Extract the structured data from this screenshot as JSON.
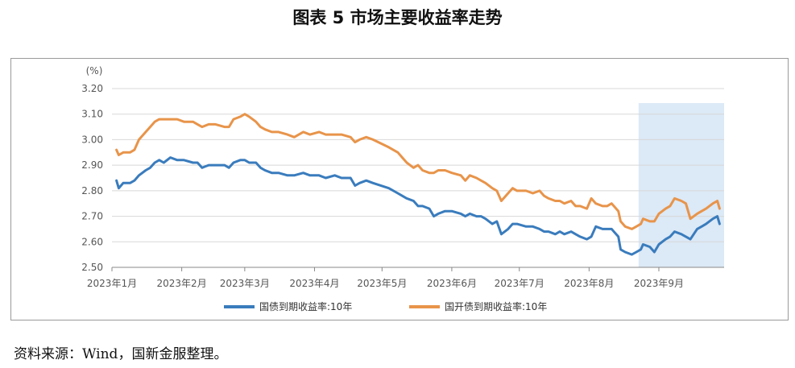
{
  "figure": {
    "title": "图表 5 市场主要收益率走势",
    "source": "资料来源：Wind，国新金服整理。"
  },
  "colors": {
    "guozhai": "#3a7cbd",
    "guokai": "#e8944a",
    "highlight": "#dce9f6",
    "grid": "#d8d8d8",
    "axis": "#888888"
  },
  "chart_data": {
    "type": "line",
    "unit_label": "(%)",
    "ylim": [
      2.5,
      3.2
    ],
    "yticks": [
      "3.20",
      "3.10",
      "3.00",
      "2.90",
      "2.80",
      "2.70",
      "2.60",
      "2.50"
    ],
    "x_start": "2023-01-01",
    "x_end": "2023-09-30",
    "xtick_labels": [
      "2023年1月",
      "2023年2月",
      "2023年3月",
      "2023年4月",
      "2023年5月",
      "2023年6月",
      "2023年7月",
      "2023年8月",
      "2023年9月"
    ],
    "xtick_dates": [
      "2023-01-01",
      "2023-02-01",
      "2023-03-01",
      "2023-04-01",
      "2023-05-01",
      "2023-06-01",
      "2023-07-01",
      "2023-08-01",
      "2023-09-01"
    ],
    "highlight_range": [
      "2023-08-23",
      "2023-09-30"
    ],
    "grid": "horizontal",
    "legend_position": "bottom",
    "series": [
      {
        "name": "国债到期收益率:10年",
        "points": [
          [
            "2023-01-03",
            2.84
          ],
          [
            "2023-01-04",
            2.81
          ],
          [
            "2023-01-06",
            2.83
          ],
          [
            "2023-01-09",
            2.83
          ],
          [
            "2023-01-11",
            2.84
          ],
          [
            "2023-01-13",
            2.86
          ],
          [
            "2023-01-16",
            2.88
          ],
          [
            "2023-01-18",
            2.89
          ],
          [
            "2023-01-20",
            2.91
          ],
          [
            "2023-01-22",
            2.92
          ],
          [
            "2023-01-24",
            2.91
          ],
          [
            "2023-01-27",
            2.93
          ],
          [
            "2023-01-30",
            2.92
          ],
          [
            "2023-02-02",
            2.92
          ],
          [
            "2023-02-06",
            2.91
          ],
          [
            "2023-02-08",
            2.91
          ],
          [
            "2023-02-10",
            2.89
          ],
          [
            "2023-02-13",
            2.9
          ],
          [
            "2023-02-16",
            2.9
          ],
          [
            "2023-02-20",
            2.9
          ],
          [
            "2023-02-22",
            2.89
          ],
          [
            "2023-02-24",
            2.91
          ],
          [
            "2023-02-27",
            2.92
          ],
          [
            "2023-03-01",
            2.92
          ],
          [
            "2023-03-03",
            2.91
          ],
          [
            "2023-03-06",
            2.91
          ],
          [
            "2023-03-08",
            2.89
          ],
          [
            "2023-03-10",
            2.88
          ],
          [
            "2023-03-13",
            2.87
          ],
          [
            "2023-03-16",
            2.87
          ],
          [
            "2023-03-20",
            2.86
          ],
          [
            "2023-03-23",
            2.86
          ],
          [
            "2023-03-27",
            2.87
          ],
          [
            "2023-03-30",
            2.86
          ],
          [
            "2023-04-03",
            2.86
          ],
          [
            "2023-04-06",
            2.85
          ],
          [
            "2023-04-10",
            2.86
          ],
          [
            "2023-04-13",
            2.85
          ],
          [
            "2023-04-17",
            2.85
          ],
          [
            "2023-04-19",
            2.82
          ],
          [
            "2023-04-21",
            2.83
          ],
          [
            "2023-04-24",
            2.84
          ],
          [
            "2023-04-27",
            2.83
          ],
          [
            "2023-05-04",
            2.81
          ],
          [
            "2023-05-08",
            2.79
          ],
          [
            "2023-05-10",
            2.78
          ],
          [
            "2023-05-12",
            2.77
          ],
          [
            "2023-05-15",
            2.76
          ],
          [
            "2023-05-17",
            2.74
          ],
          [
            "2023-05-19",
            2.74
          ],
          [
            "2023-05-22",
            2.73
          ],
          [
            "2023-05-24",
            2.7
          ],
          [
            "2023-05-26",
            2.71
          ],
          [
            "2023-05-29",
            2.72
          ],
          [
            "2023-06-01",
            2.72
          ],
          [
            "2023-06-05",
            2.71
          ],
          [
            "2023-06-07",
            2.7
          ],
          [
            "2023-06-09",
            2.71
          ],
          [
            "2023-06-12",
            2.7
          ],
          [
            "2023-06-14",
            2.7
          ],
          [
            "2023-06-16",
            2.69
          ],
          [
            "2023-06-19",
            2.67
          ],
          [
            "2023-06-21",
            2.68
          ],
          [
            "2023-06-23",
            2.63
          ],
          [
            "2023-06-26",
            2.65
          ],
          [
            "2023-06-28",
            2.67
          ],
          [
            "2023-06-30",
            2.67
          ],
          [
            "2023-07-04",
            2.66
          ],
          [
            "2023-07-07",
            2.66
          ],
          [
            "2023-07-10",
            2.65
          ],
          [
            "2023-07-12",
            2.64
          ],
          [
            "2023-07-14",
            2.64
          ],
          [
            "2023-07-17",
            2.63
          ],
          [
            "2023-07-19",
            2.64
          ],
          [
            "2023-07-21",
            2.63
          ],
          [
            "2023-07-24",
            2.64
          ],
          [
            "2023-07-26",
            2.63
          ],
          [
            "2023-07-28",
            2.62
          ],
          [
            "2023-07-31",
            2.61
          ],
          [
            "2023-08-02",
            2.62
          ],
          [
            "2023-08-04",
            2.66
          ],
          [
            "2023-08-07",
            2.65
          ],
          [
            "2023-08-09",
            2.65
          ],
          [
            "2023-08-11",
            2.65
          ],
          [
            "2023-08-14",
            2.62
          ],
          [
            "2023-08-15",
            2.57
          ],
          [
            "2023-08-17",
            2.56
          ],
          [
            "2023-08-20",
            2.55
          ],
          [
            "2023-08-22",
            2.56
          ],
          [
            "2023-08-24",
            2.57
          ],
          [
            "2023-08-25",
            2.59
          ],
          [
            "2023-08-28",
            2.58
          ],
          [
            "2023-08-30",
            2.56
          ],
          [
            "2023-09-01",
            2.59
          ],
          [
            "2023-09-04",
            2.61
          ],
          [
            "2023-09-06",
            2.62
          ],
          [
            "2023-09-08",
            2.64
          ],
          [
            "2023-09-11",
            2.63
          ],
          [
            "2023-09-13",
            2.62
          ],
          [
            "2023-09-15",
            2.61
          ],
          [
            "2023-09-18",
            2.65
          ],
          [
            "2023-09-20",
            2.66
          ],
          [
            "2023-09-22",
            2.67
          ],
          [
            "2023-09-25",
            2.69
          ],
          [
            "2023-09-27",
            2.7
          ],
          [
            "2023-09-28",
            2.67
          ]
        ]
      },
      {
        "name": "国开债到期收益率:10年",
        "points": [
          [
            "2023-01-03",
            2.96
          ],
          [
            "2023-01-04",
            2.94
          ],
          [
            "2023-01-06",
            2.95
          ],
          [
            "2023-01-09",
            2.95
          ],
          [
            "2023-01-11",
            2.96
          ],
          [
            "2023-01-13",
            3.0
          ],
          [
            "2023-01-16",
            3.03
          ],
          [
            "2023-01-18",
            3.05
          ],
          [
            "2023-01-20",
            3.07
          ],
          [
            "2023-01-22",
            3.08
          ],
          [
            "2023-01-24",
            3.08
          ],
          [
            "2023-01-27",
            3.08
          ],
          [
            "2023-01-30",
            3.08
          ],
          [
            "2023-02-02",
            3.07
          ],
          [
            "2023-02-06",
            3.07
          ],
          [
            "2023-02-08",
            3.06
          ],
          [
            "2023-02-10",
            3.05
          ],
          [
            "2023-02-13",
            3.06
          ],
          [
            "2023-02-16",
            3.06
          ],
          [
            "2023-02-20",
            3.05
          ],
          [
            "2023-02-22",
            3.05
          ],
          [
            "2023-02-24",
            3.08
          ],
          [
            "2023-02-27",
            3.09
          ],
          [
            "2023-03-01",
            3.1
          ],
          [
            "2023-03-03",
            3.09
          ],
          [
            "2023-03-06",
            3.07
          ],
          [
            "2023-03-08",
            3.05
          ],
          [
            "2023-03-10",
            3.04
          ],
          [
            "2023-03-13",
            3.03
          ],
          [
            "2023-03-16",
            3.03
          ],
          [
            "2023-03-20",
            3.02
          ],
          [
            "2023-03-23",
            3.01
          ],
          [
            "2023-03-27",
            3.03
          ],
          [
            "2023-03-30",
            3.02
          ],
          [
            "2023-04-03",
            3.03
          ],
          [
            "2023-04-06",
            3.02
          ],
          [
            "2023-04-10",
            3.02
          ],
          [
            "2023-04-13",
            3.02
          ],
          [
            "2023-04-17",
            3.01
          ],
          [
            "2023-04-19",
            2.99
          ],
          [
            "2023-04-21",
            3.0
          ],
          [
            "2023-04-24",
            3.01
          ],
          [
            "2023-04-27",
            3.0
          ],
          [
            "2023-05-04",
            2.97
          ],
          [
            "2023-05-08",
            2.95
          ],
          [
            "2023-05-10",
            2.93
          ],
          [
            "2023-05-12",
            2.91
          ],
          [
            "2023-05-15",
            2.89
          ],
          [
            "2023-05-17",
            2.9
          ],
          [
            "2023-05-19",
            2.88
          ],
          [
            "2023-05-22",
            2.87
          ],
          [
            "2023-05-24",
            2.87
          ],
          [
            "2023-05-26",
            2.88
          ],
          [
            "2023-05-29",
            2.88
          ],
          [
            "2023-06-01",
            2.87
          ],
          [
            "2023-06-05",
            2.86
          ],
          [
            "2023-06-07",
            2.84
          ],
          [
            "2023-06-09",
            2.86
          ],
          [
            "2023-06-12",
            2.85
          ],
          [
            "2023-06-14",
            2.84
          ],
          [
            "2023-06-16",
            2.83
          ],
          [
            "2023-06-19",
            2.81
          ],
          [
            "2023-06-21",
            2.8
          ],
          [
            "2023-06-23",
            2.76
          ],
          [
            "2023-06-26",
            2.79
          ],
          [
            "2023-06-28",
            2.81
          ],
          [
            "2023-06-30",
            2.8
          ],
          [
            "2023-07-04",
            2.8
          ],
          [
            "2023-07-07",
            2.79
          ],
          [
            "2023-07-10",
            2.8
          ],
          [
            "2023-07-12",
            2.78
          ],
          [
            "2023-07-14",
            2.77
          ],
          [
            "2023-07-17",
            2.76
          ],
          [
            "2023-07-19",
            2.76
          ],
          [
            "2023-07-21",
            2.75
          ],
          [
            "2023-07-24",
            2.76
          ],
          [
            "2023-07-26",
            2.74
          ],
          [
            "2023-07-28",
            2.74
          ],
          [
            "2023-07-31",
            2.73
          ],
          [
            "2023-08-02",
            2.77
          ],
          [
            "2023-08-04",
            2.75
          ],
          [
            "2023-08-07",
            2.74
          ],
          [
            "2023-08-09",
            2.74
          ],
          [
            "2023-08-11",
            2.75
          ],
          [
            "2023-08-14",
            2.72
          ],
          [
            "2023-08-15",
            2.68
          ],
          [
            "2023-08-17",
            2.66
          ],
          [
            "2023-08-20",
            2.65
          ],
          [
            "2023-08-22",
            2.66
          ],
          [
            "2023-08-24",
            2.67
          ],
          [
            "2023-08-25",
            2.69
          ],
          [
            "2023-08-28",
            2.68
          ],
          [
            "2023-08-30",
            2.68
          ],
          [
            "2023-09-01",
            2.71
          ],
          [
            "2023-09-04",
            2.73
          ],
          [
            "2023-09-06",
            2.74
          ],
          [
            "2023-09-08",
            2.77
          ],
          [
            "2023-09-11",
            2.76
          ],
          [
            "2023-09-13",
            2.75
          ],
          [
            "2023-09-15",
            2.69
          ],
          [
            "2023-09-18",
            2.71
          ],
          [
            "2023-09-20",
            2.72
          ],
          [
            "2023-09-22",
            2.73
          ],
          [
            "2023-09-25",
            2.75
          ],
          [
            "2023-09-27",
            2.76
          ],
          [
            "2023-09-28",
            2.73
          ]
        ]
      }
    ]
  }
}
